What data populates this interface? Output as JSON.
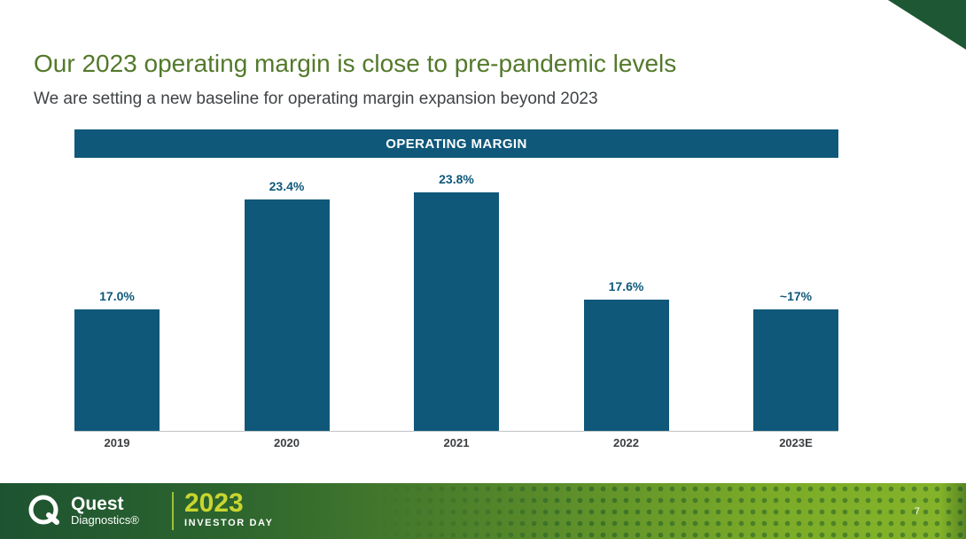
{
  "slide": {
    "title": "Our 2023 operating margin is close to pre-pandemic levels",
    "subtitle": "We are setting a new baseline for operating margin expansion beyond 2023",
    "page_number": "7"
  },
  "chart_data": {
    "type": "bar",
    "title": "OPERATING MARGIN",
    "categories": [
      "2019",
      "2020",
      "2021",
      "2022",
      "2023E"
    ],
    "values": [
      17.0,
      23.4,
      23.8,
      17.6,
      17.0
    ],
    "value_labels": [
      "17.0%",
      "23.4%",
      "23.8%",
      "17.6%",
      "~17%"
    ],
    "ylim": [
      10,
      26
    ],
    "grid": false,
    "legend": "none",
    "bar_color": "#0f587a",
    "label_color": "#0f587a"
  },
  "footer": {
    "logo_text_primary": "Quest",
    "logo_text_secondary": "Diagnostics®",
    "event_year": "2023",
    "event_name": "INVESTOR DAY"
  },
  "colors": {
    "title_green": "#53792a",
    "header_bar_teal": "#0f587a",
    "footer_gradient_start": "#1d5331",
    "footer_gradient_end": "#86b42a",
    "accent_yellow_green": "#c9d52f",
    "corner_triangle_green": "#1e5733"
  }
}
